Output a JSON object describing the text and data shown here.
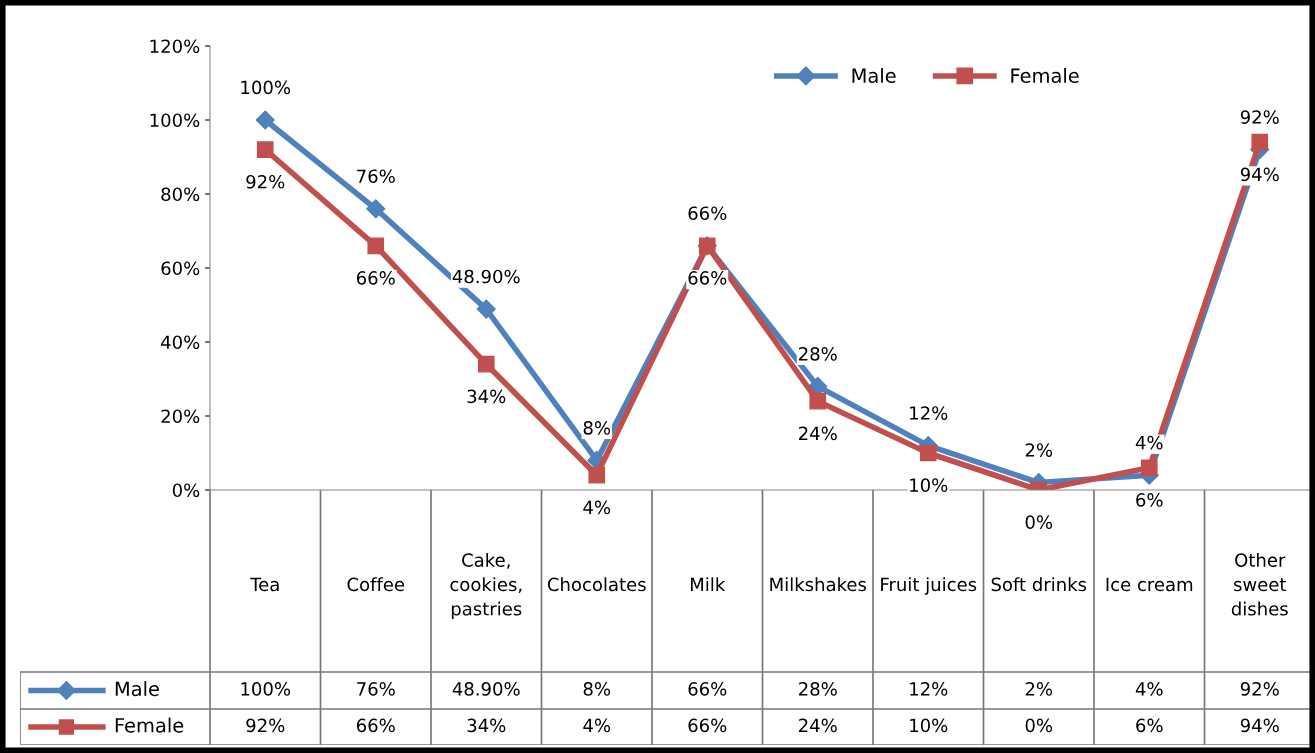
{
  "chart_data": {
    "type": "line",
    "categories": [
      "Tea",
      "Coffee",
      "Cake, cookies, pastries",
      "Chocolates",
      "Milk",
      "Milkshakes",
      "Fruit juices",
      "Soft drinks",
      "Ice cream",
      "Other sweet dishes"
    ],
    "series": [
      {
        "name": "Male",
        "color": "#4f81bd",
        "marker": "diamond",
        "values": [
          100,
          76,
          48.9,
          8,
          66,
          28,
          12,
          2,
          4,
          92
        ],
        "value_labels": [
          "100%",
          "76%",
          "48.90%",
          "8%",
          "66%",
          "28%",
          "12%",
          "2%",
          "4%",
          "92%"
        ]
      },
      {
        "name": "Female",
        "color": "#c0504d",
        "marker": "square",
        "values": [
          92,
          66,
          34,
          4,
          66,
          24,
          10,
          0,
          6,
          94
        ],
        "value_labels": [
          "92%",
          "66%",
          "34%",
          "4%",
          "66%",
          "24%",
          "10%",
          "0%",
          "6%",
          "94%"
        ]
      }
    ],
    "ylim": [
      0,
      120
    ],
    "yticks": [
      {
        "value": 0,
        "label": "0%"
      },
      {
        "value": 20,
        "label": "20%"
      },
      {
        "value": 40,
        "label": "40%"
      },
      {
        "value": 60,
        "label": "60%"
      },
      {
        "value": 80,
        "label": "80%"
      },
      {
        "value": 100,
        "label": "100%"
      },
      {
        "value": 120,
        "label": "120%"
      }
    ],
    "grid": false,
    "legend": "top right",
    "line_style": "solid"
  }
}
